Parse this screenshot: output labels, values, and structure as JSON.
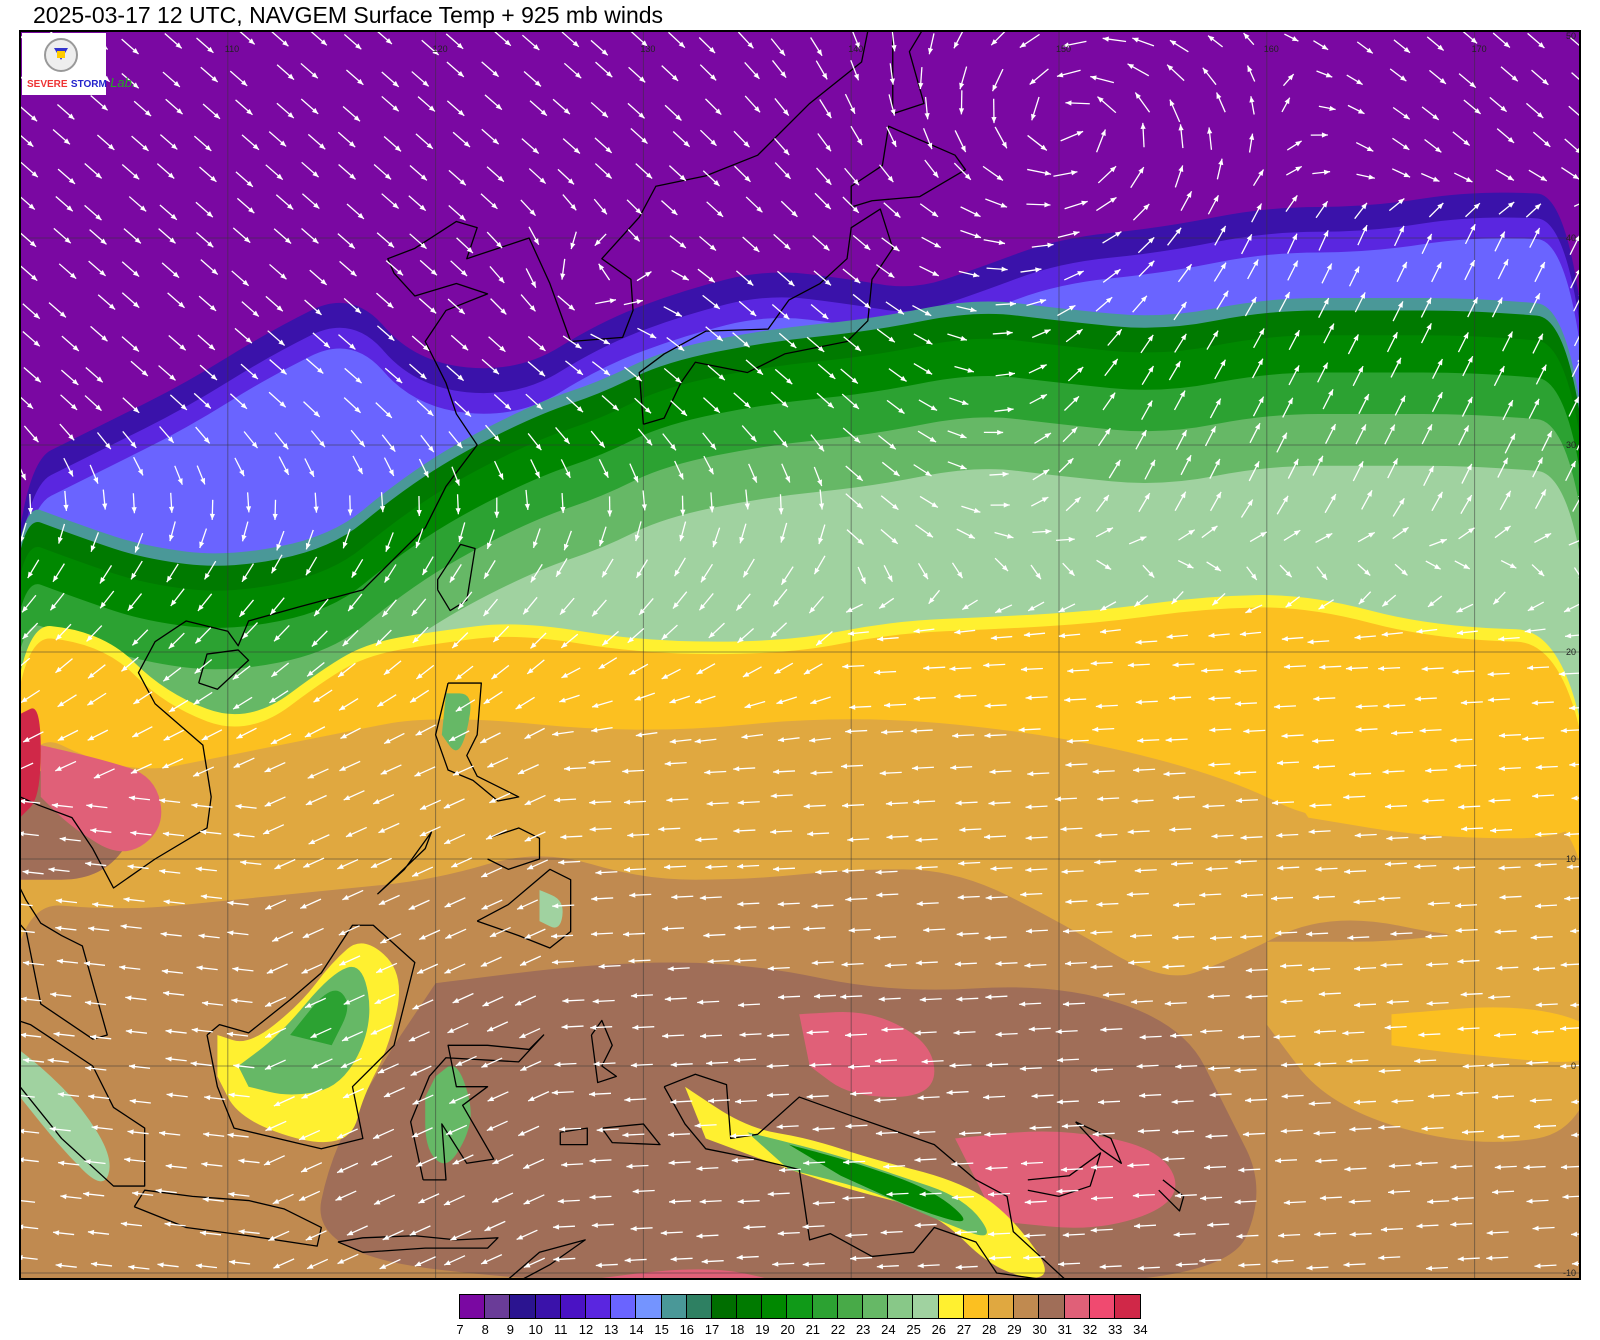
{
  "title": "2025-03-17 12 UTC, NAVGEM Surface Temp + 925 mb winds",
  "logo": {
    "line1": "SEVERE",
    "line2": "STORM",
    "line3": "Lab."
  },
  "map": {
    "projection": "lat-lon",
    "lon_range": [
      100,
      175
    ],
    "lat_range": [
      -10.3,
      50
    ],
    "lon_labels": [
      "110",
      "120",
      "130",
      "140",
      "150",
      "160",
      "170"
    ],
    "lat_labels": [
      "50",
      "40",
      "30",
      "20",
      "10",
      "0",
      "-10"
    ],
    "land_outline_color": "#000000",
    "wind_arrow_color": "#ffffff",
    "cyclone_center": {
      "lon": 150.5,
      "lat": 45.5
    }
  },
  "colorbar": {
    "unit_levels": [
      "7",
      "8",
      "9",
      "10",
      "11",
      "12",
      "13",
      "14",
      "15",
      "16",
      "17",
      "18",
      "19",
      "20",
      "21",
      "22",
      "23",
      "24",
      "25",
      "26",
      "27",
      "28",
      "29",
      "30",
      "31",
      "32",
      "33",
      "34"
    ],
    "colors": [
      "#7a08a2",
      "#6a3c98",
      "#2b1490",
      "#3a12aa",
      "#4a12c4",
      "#5a26e0",
      "#6a64ff",
      "#7494ff",
      "#4a9898",
      "#2e8062",
      "#006e00",
      "#007a00",
      "#008800",
      "#109a18",
      "#2ca232",
      "#48aa48",
      "#66b866",
      "#88c888",
      "#a0d2a0",
      "#fff030",
      "#fcc020",
      "#e0a840",
      "#c08a50",
      "#a06e58",
      "#e06078",
      "#f04a70",
      "#d02848"
    ]
  }
}
